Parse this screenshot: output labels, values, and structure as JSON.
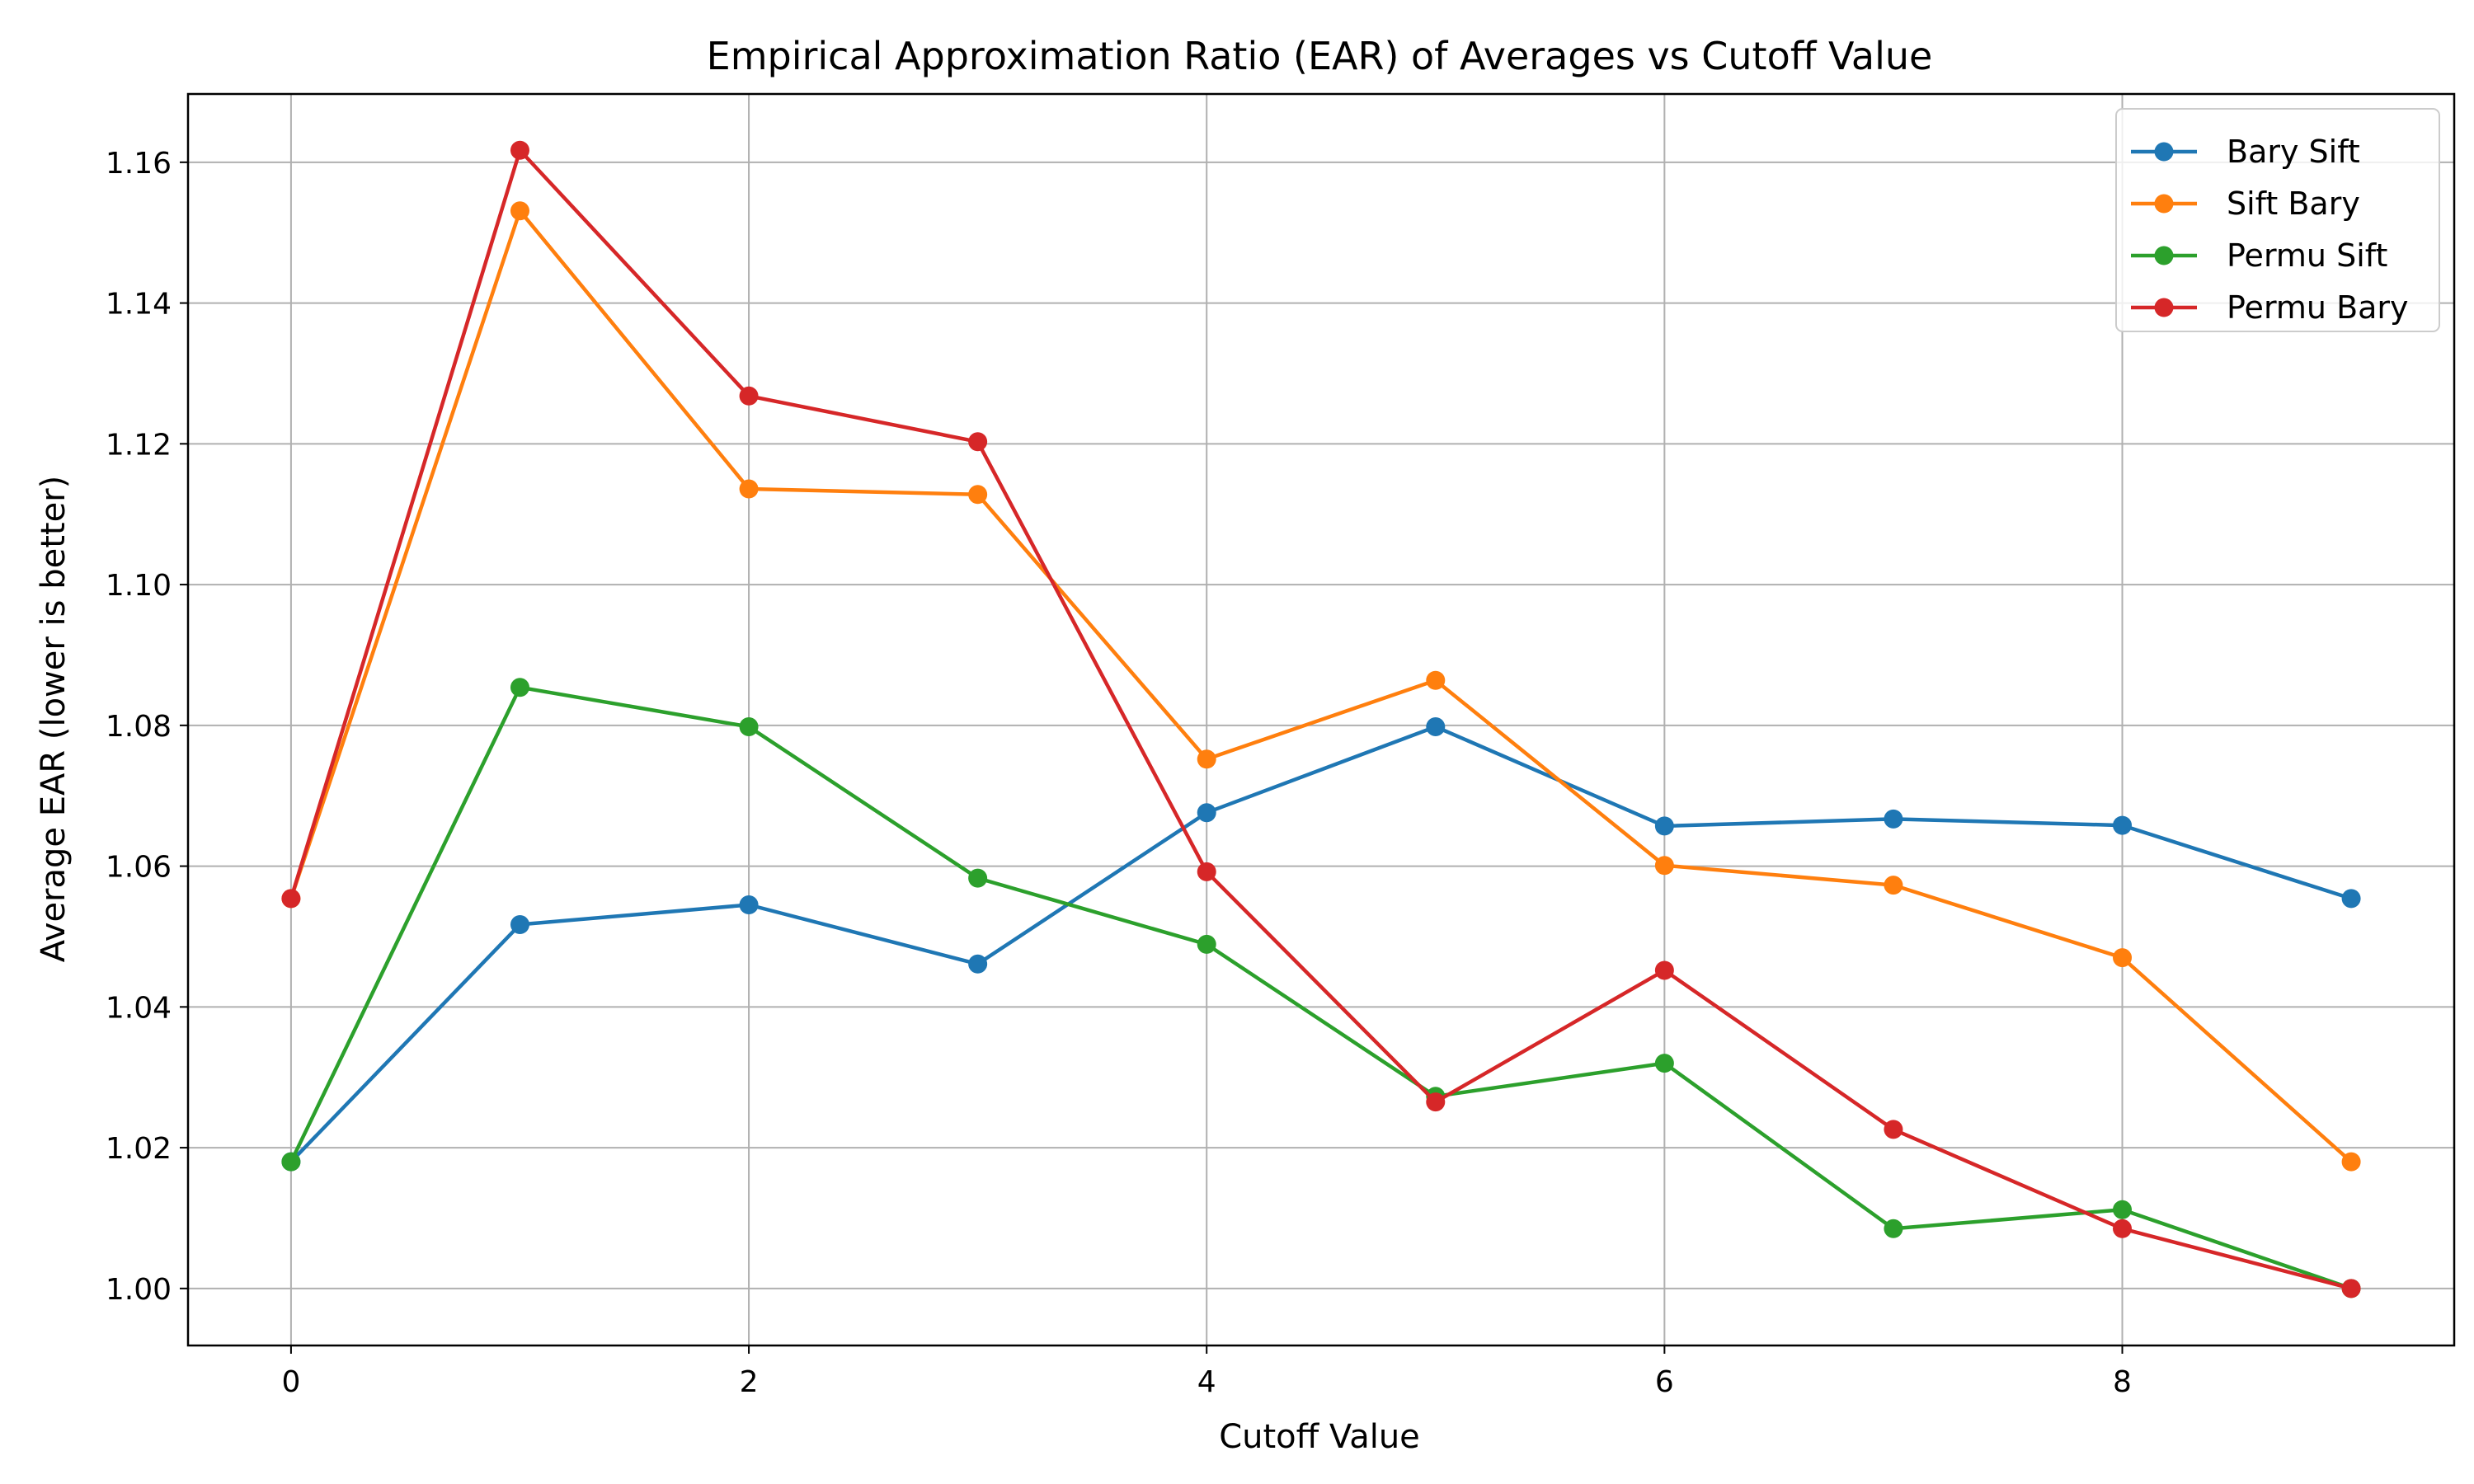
{
  "chart_data": {
    "type": "line",
    "title": "Empirical Approximation Ratio (EAR) of Averages vs Cutoff Value",
    "xlabel": "Cutoff Value",
    "ylabel": "Average EAR (lower is better)",
    "x": [
      0,
      1,
      2,
      3,
      4,
      5,
      6,
      7,
      8,
      9
    ],
    "xlim": [
      -0.45,
      9.45
    ],
    "ylim": [
      0.9919,
      1.1697
    ],
    "xticks": [
      0,
      2,
      4,
      6,
      8
    ],
    "xtick_labels": [
      "0",
      "2",
      "4",
      "6",
      "8"
    ],
    "yticks": [
      1.0,
      1.02,
      1.04,
      1.06,
      1.08,
      1.1,
      1.12,
      1.14,
      1.16
    ],
    "ytick_labels": [
      "1.00",
      "1.02",
      "1.04",
      "1.06",
      "1.08",
      "1.10",
      "1.12",
      "1.14",
      "1.16"
    ],
    "grid": true,
    "legend_position": "top-right",
    "series": [
      {
        "name": "Bary Sift",
        "color": "#1f77b4",
        "values": [
          1.018,
          1.0517,
          1.0545,
          1.0461,
          1.0676,
          1.0798,
          1.0657,
          1.0667,
          1.0658,
          1.0554
        ]
      },
      {
        "name": "Sift Bary",
        "color": "#ff7f0e",
        "values": [
          1.0554,
          1.1531,
          1.1136,
          1.1128,
          1.0752,
          1.0864,
          1.0601,
          1.0573,
          1.047,
          1.018
        ]
      },
      {
        "name": "Permu Sift",
        "color": "#2ca02c",
        "values": [
          1.018,
          1.0854,
          1.0798,
          1.0583,
          1.0489,
          1.0273,
          1.032,
          1.0085,
          1.0112,
          1.0
        ]
      },
      {
        "name": "Permu Bary",
        "color": "#d62728",
        "values": [
          1.0554,
          1.1617,
          1.1268,
          1.1203,
          1.0592,
          1.0265,
          1.0452,
          1.0226,
          1.0085,
          1.0
        ]
      }
    ]
  }
}
